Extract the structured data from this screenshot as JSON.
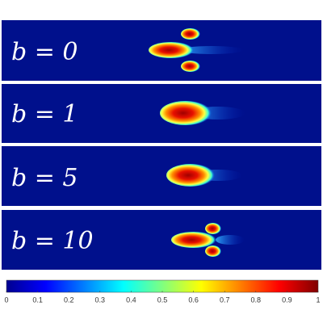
{
  "panels": [
    {
      "label": "b = 0"
    },
    {
      "label": "b = 1"
    },
    {
      "label": "b = 5"
    },
    {
      "label": "b = 10"
    }
  ],
  "colorbar": {
    "lim": [
      0,
      1
    ],
    "ticks": [
      0,
      0.1,
      0.2,
      0.3,
      0.4,
      0.5,
      0.6,
      0.7,
      0.8,
      0.9,
      1
    ]
  }
}
